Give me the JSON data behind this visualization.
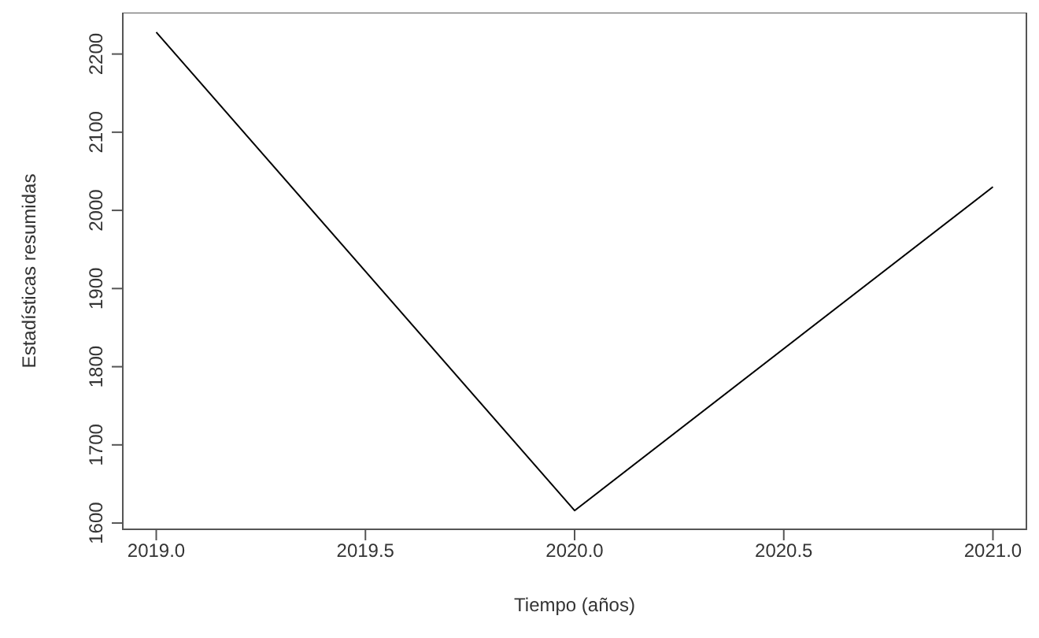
{
  "chart_data": {
    "type": "line",
    "xlabel": "Tiempo (años)",
    "ylabel": "Estadísticas resumidas",
    "x": [
      2019,
      2020,
      2021
    ],
    "series": [
      {
        "color": "#000000",
        "values": [
          2228,
          1616,
          2030
        ]
      }
    ],
    "xlim": [
      2018.92,
      2021.08
    ],
    "xticks": [
      {
        "value": 2019,
        "label": "2019.0"
      },
      {
        "value": 2019.5,
        "label": "2019.5"
      },
      {
        "value": 2020,
        "label": "2020.0"
      },
      {
        "value": 2020.5,
        "label": "2020.5"
      },
      {
        "value": 2021,
        "label": "2021.0"
      }
    ],
    "ylim": [
      1592,
      2253
    ],
    "yticks": [
      1600,
      1700,
      1800,
      1900,
      2000,
      2100,
      2200
    ],
    "grid": false,
    "legend": false,
    "marker": "none",
    "line_style": "solid"
  }
}
